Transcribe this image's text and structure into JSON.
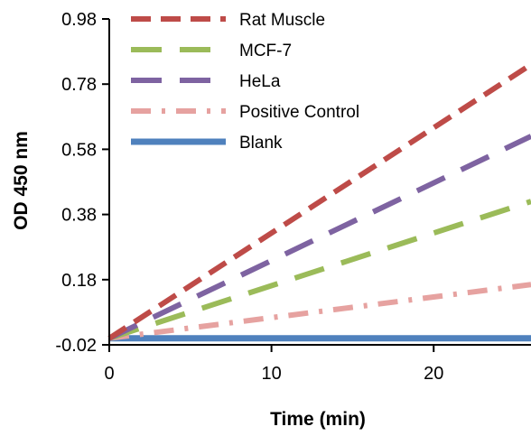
{
  "chart_data": {
    "type": "line",
    "title": "",
    "xlabel": "Time (min)",
    "ylabel": "OD 450 nm",
    "xlim": [
      0,
      26
    ],
    "ylim": [
      -0.02,
      0.98
    ],
    "xticks": [
      0,
      10,
      20
    ],
    "xtick_labels": [
      "0",
      "10",
      "20"
    ],
    "yticks": [
      -0.02,
      0.18,
      0.38,
      0.58,
      0.78,
      0.98
    ],
    "ytick_labels": [
      "-0.02",
      "0.18",
      "0.38",
      "0.58",
      "0.78",
      "0.98"
    ],
    "legend_position": "top-left",
    "grid": false,
    "series": [
      {
        "name": "Rat Muscle",
        "color": "#be4b48",
        "dash": "dash",
        "x": [
          0,
          26
        ],
        "y": [
          0.0,
          0.84
        ]
      },
      {
        "name": "MCF-7",
        "color": "#9bbb59",
        "dash": "longdash",
        "x": [
          0,
          26
        ],
        "y": [
          0.0,
          0.42
        ]
      },
      {
        "name": "HeLa",
        "color": "#7e63a1",
        "dash": "longdash",
        "x": [
          0,
          26
        ],
        "y": [
          0.0,
          0.62
        ]
      },
      {
        "name": "Positive Control",
        "color": "#e6a2a0",
        "dash": "dashdot",
        "x": [
          0,
          26
        ],
        "y": [
          0.0,
          0.165
        ]
      },
      {
        "name": "Blank",
        "color": "#4f81bd",
        "dash": "solid",
        "x": [
          0,
          26
        ],
        "y": [
          0.0,
          0.0
        ]
      }
    ]
  }
}
